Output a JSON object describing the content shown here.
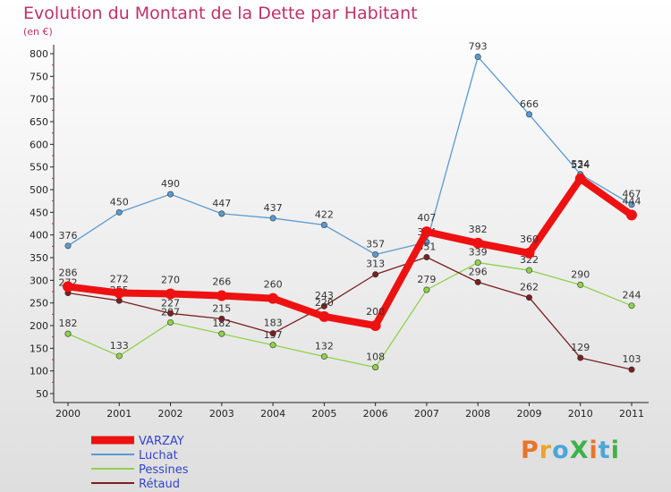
{
  "header": {
    "title": "Evolution du Montant de la Dette par Habitant",
    "unit": "(en €)"
  },
  "logo": {
    "text": "ProXiti",
    "letter_colors": [
      "#e8742a",
      "#e8a52a",
      "#4ca6d8",
      "#3cb34a",
      "#e8742a",
      "#4ca6d8",
      "#3cb34a"
    ]
  },
  "chart_data": {
    "type": "line",
    "x": [
      "2000",
      "2001",
      "2002",
      "2003",
      "2004",
      "2005",
      "2006",
      "2007",
      "2008",
      "2009",
      "2010",
      "2011"
    ],
    "ylim": [
      50,
      800
    ],
    "yticks": [
      50,
      100,
      150,
      200,
      250,
      300,
      350,
      400,
      450,
      500,
      550,
      600,
      650,
      700,
      750,
      800
    ],
    "grid": false,
    "legend_position": "bottom-left",
    "series": [
      {
        "name": "Luchat",
        "color": "#5a9ad0",
        "values": [
          376,
          450,
          490,
          447,
          437,
          422,
          357,
          384,
          793,
          666,
          534,
          467
        ]
      },
      {
        "name": "Pessines",
        "color": "#8fd24a",
        "values": [
          182,
          133,
          207,
          182,
          157,
          132,
          108,
          279,
          339,
          322,
          290,
          244
        ]
      },
      {
        "name": "Rétaud",
        "color": "#7a2020",
        "values": [
          272,
          255,
          227,
          215,
          183,
          243,
          313,
          351,
          296,
          262,
          129,
          103
        ]
      },
      {
        "name": "VARZAY",
        "color": "#ee1111",
        "values": [
          286,
          272,
          270,
          266,
          260,
          220,
          200,
          407,
          382,
          360,
          524,
          444
        ]
      }
    ]
  }
}
